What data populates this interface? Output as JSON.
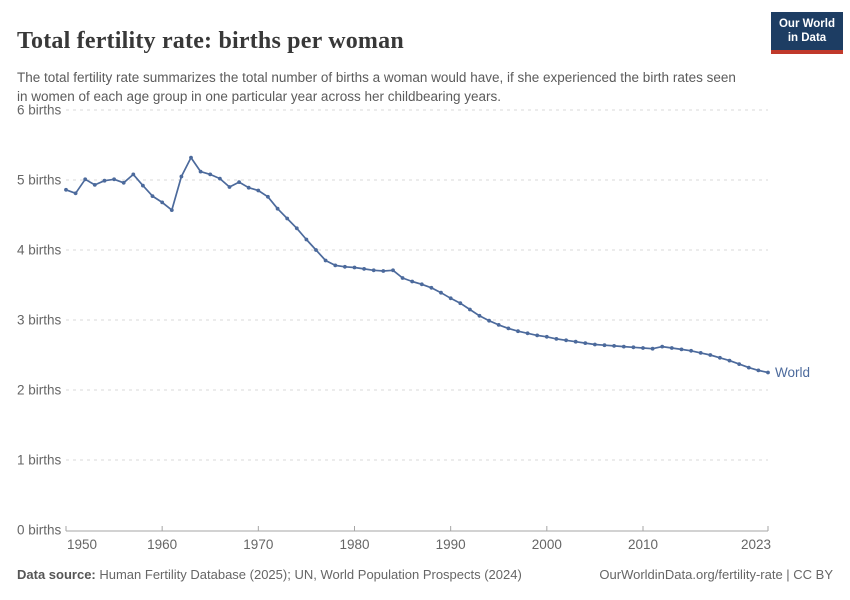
{
  "header": {
    "title": "Total fertility rate: births per woman",
    "subtitle": "The total fertility rate summarizes the total number of births a woman would have, if she experienced the birth rates seen in women of each age group in one particular year across her childbearing years.",
    "logo": {
      "line1": "Our World",
      "line2": "in Data",
      "bg_color": "#1d3d63",
      "accent_color": "#c0392b"
    }
  },
  "footer": {
    "source_label": "Data source:",
    "source_text": " Human Fertility Database (2025); UN, World Population Prospects (2024)",
    "link_text": "OurWorldinData.org/fertility-rate | CC BY"
  },
  "chart_data": {
    "type": "line",
    "title": "Total fertility rate: births per woman",
    "xlabel": "",
    "ylabel": "",
    "xlim": [
      1950,
      2023
    ],
    "ylim": [
      0,
      6
    ],
    "grid": "horizontal-dashed",
    "legend_position": "end-of-line-label",
    "x_ticks": [
      1950,
      1960,
      1970,
      1980,
      1990,
      2000,
      2010,
      2023
    ],
    "y_ticks": [
      0,
      1,
      2,
      3,
      4,
      5,
      6
    ],
    "y_tick_format": "{v} births",
    "colors": {
      "line": "#4c6a9c",
      "gridline": "#dadada",
      "axis": "#a5a5a5",
      "tick_label": "#666666"
    },
    "series": [
      {
        "name": "World",
        "color": "#4c6a9c",
        "years": [
          1950,
          1951,
          1952,
          1953,
          1954,
          1955,
          1956,
          1957,
          1958,
          1959,
          1960,
          1961,
          1962,
          1963,
          1964,
          1965,
          1966,
          1967,
          1968,
          1969,
          1970,
          1971,
          1972,
          1973,
          1974,
          1975,
          1976,
          1977,
          1978,
          1979,
          1980,
          1981,
          1982,
          1983,
          1984,
          1985,
          1986,
          1987,
          1988,
          1989,
          1990,
          1991,
          1992,
          1993,
          1994,
          1995,
          1996,
          1997,
          1998,
          1999,
          2000,
          2001,
          2002,
          2003,
          2004,
          2005,
          2006,
          2007,
          2008,
          2009,
          2010,
          2011,
          2012,
          2013,
          2014,
          2015,
          2016,
          2017,
          2018,
          2019,
          2020,
          2021,
          2022,
          2023
        ],
        "values": [
          4.86,
          4.81,
          5.01,
          4.93,
          4.99,
          5.01,
          4.96,
          5.08,
          4.92,
          4.77,
          4.68,
          4.57,
          5.05,
          5.32,
          5.12,
          5.08,
          5.02,
          4.9,
          4.97,
          4.89,
          4.85,
          4.76,
          4.59,
          4.45,
          4.31,
          4.15,
          4.0,
          3.85,
          3.78,
          3.76,
          3.75,
          3.73,
          3.71,
          3.7,
          3.71,
          3.6,
          3.55,
          3.51,
          3.46,
          3.39,
          3.31,
          3.24,
          3.15,
          3.06,
          2.99,
          2.93,
          2.88,
          2.84,
          2.81,
          2.78,
          2.76,
          2.73,
          2.71,
          2.69,
          2.67,
          2.65,
          2.64,
          2.63,
          2.62,
          2.61,
          2.6,
          2.59,
          2.62,
          2.6,
          2.58,
          2.56,
          2.53,
          2.5,
          2.46,
          2.42,
          2.37,
          2.32,
          2.28,
          2.25
        ]
      }
    ]
  }
}
